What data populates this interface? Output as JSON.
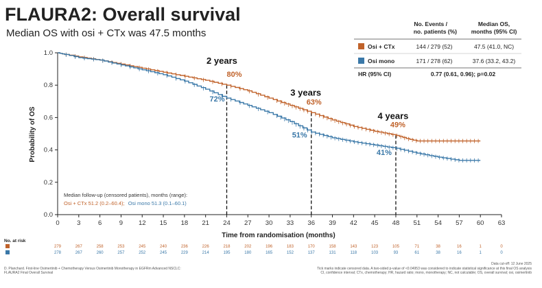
{
  "slide": {
    "title": "FLAURA2: Overall survival",
    "subtitle": "Median OS with osi + CTx was 47.5 months"
  },
  "colors": {
    "osi_ctx": "#c0622a",
    "osi_mono": "#3a78a8"
  },
  "chart_data": {
    "type": "line",
    "title": "",
    "xlabel": "Time from randomisation (months)",
    "ylabel": "Probability of OS",
    "xlim": [
      0,
      63
    ],
    "ylim": [
      0,
      1
    ],
    "xticks": [
      "0",
      "3",
      "6",
      "9",
      "12",
      "15",
      "18",
      "21",
      "24",
      "27",
      "30",
      "33",
      "36",
      "39",
      "42",
      "45",
      "48",
      "51",
      "54",
      "57",
      "60",
      "63"
    ],
    "yticks": [
      "0.0",
      "0.2",
      "0.4",
      "0.6",
      "0.8",
      "1.0"
    ],
    "series": [
      {
        "name": "Osi + CTx",
        "color": "#c0622a",
        "x": [
          0,
          1,
          3,
          6,
          9,
          12,
          15,
          18,
          21,
          24,
          27,
          30,
          33,
          36,
          39,
          42,
          45,
          48,
          49.5,
          51,
          54,
          57,
          60
        ],
        "y": [
          1.0,
          0.99,
          0.975,
          0.955,
          0.93,
          0.905,
          0.88,
          0.855,
          0.83,
          0.8,
          0.765,
          0.72,
          0.675,
          0.63,
          0.585,
          0.545,
          0.515,
          0.49,
          0.47,
          0.455,
          0.455,
          0.455,
          0.455
        ]
      },
      {
        "name": "Osi mono",
        "color": "#3a78a8",
        "x": [
          0,
          1,
          3,
          6,
          9,
          12,
          15,
          18,
          21,
          24,
          27,
          30,
          33,
          36,
          39,
          42,
          45,
          48,
          51,
          54,
          57,
          60
        ],
        "y": [
          1.0,
          0.99,
          0.97,
          0.955,
          0.925,
          0.895,
          0.865,
          0.825,
          0.775,
          0.72,
          0.675,
          0.63,
          0.575,
          0.51,
          0.475,
          0.45,
          0.43,
          0.41,
          0.38,
          0.355,
          0.335,
          0.335
        ]
      }
    ],
    "milestones": [
      {
        "month": 24,
        "label": "2 years",
        "osi_ctx": "80%",
        "osi_mono": "72%"
      },
      {
        "month": 36,
        "label": "3 years",
        "osi_ctx": "63%",
        "osi_mono": "51%"
      },
      {
        "month": 48,
        "label": "4 years",
        "osi_ctx": "49%",
        "osi_mono": "41%"
      }
    ],
    "summary_table": {
      "header_events": [
        "No. Events /",
        "no. patients (%)"
      ],
      "header_median": [
        "Median OS,",
        "months (95% CI)"
      ],
      "rows": [
        {
          "arm": "Osi + CTx",
          "events": "144 / 279 (52)",
          "median": "47.5 (41.0, NC)"
        },
        {
          "arm": "Osi mono",
          "events": "171 / 278 (62)",
          "median": "37.6 (33.2, 43.2)"
        }
      ],
      "hr_label": "HR (95% CI)",
      "hr_value": "0.77 (0.61, 0.96); p=0.02"
    },
    "followup_note": {
      "line1": "Median follow-up (censored patients), months (range):",
      "osi_ctx": "Osi + CTx 51.2 (0.2–60.4);",
      "osi_mono": "Osi mono 51.3 (0.1–60.1)"
    },
    "at_risk": {
      "title": "No. at risk",
      "osi_ctx": [
        "279",
        "267",
        "258",
        "253",
        "245",
        "240",
        "236",
        "226",
        "218",
        "202",
        "196",
        "183",
        "170",
        "158",
        "143",
        "123",
        "105",
        "71",
        "38",
        "16",
        "1",
        "0"
      ],
      "osi_mono": [
        "278",
        "267",
        "260",
        "257",
        "252",
        "245",
        "229",
        "214",
        "195",
        "180",
        "165",
        "152",
        "137",
        "131",
        "118",
        "103",
        "93",
        "61",
        "38",
        "16",
        "1",
        "0"
      ]
    },
    "footer": {
      "left1": "D. Planchard. First-line Osimertinib + Chemotherapy Versus Osimertinib Monotherapy in EGFRm Advanced NSCLC:",
      "left2": "FLAURA2 Final Overall Survival",
      "right0": "Data cut-off: 12 June 2025",
      "right1": "Tick marks indicate censored data. A two-sided p-value of <0.04953 was considered to indicate statistical significance at this final OS analysis",
      "right2": "CI, confidence interval; CTx, chemotherapy; HR, hazard ratio; mono, monotherapy; NC, not calculable; OS, overall survival; osi, osimertinib"
    }
  }
}
